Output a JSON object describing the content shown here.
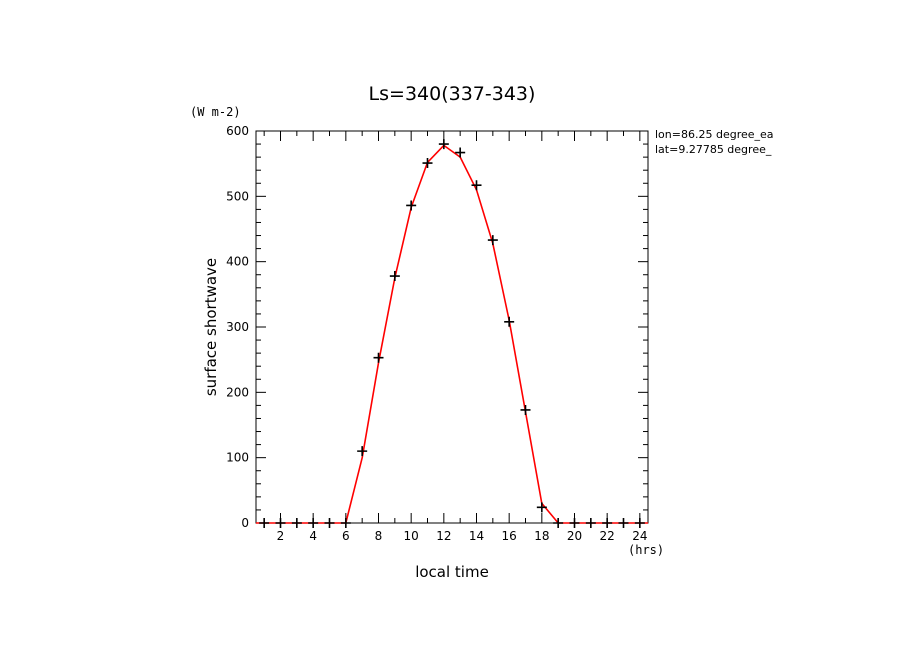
{
  "chart_data": {
    "type": "line",
    "title": "Ls=340(337-343)",
    "xlabel": "local time",
    "ylabel": "surface shortwave",
    "x_unit": "(hrs)",
    "y_unit": "(W m-2)",
    "xlim": [
      0.5,
      24.5
    ],
    "ylim": [
      0,
      600
    ],
    "x_ticks": [
      2,
      4,
      6,
      8,
      10,
      12,
      14,
      16,
      18,
      20,
      22,
      24
    ],
    "y_ticks": [
      0,
      100,
      200,
      300,
      400,
      500,
      600
    ],
    "grid": false,
    "annotations": [
      "lon=86.25 degree_ea",
      "lat=9.27785 degree_"
    ],
    "series": [
      {
        "style": "line",
        "color": "#ff0000",
        "x": [
          0.5,
          1,
          2,
          3,
          4,
          5,
          6,
          7,
          8,
          9,
          10,
          11,
          12,
          13,
          14,
          15,
          16,
          17,
          18,
          19,
          20,
          21,
          22,
          23,
          24,
          24.5
        ],
        "values": [
          0,
          0,
          0,
          0,
          0,
          0,
          0,
          100,
          245,
          375,
          483,
          552,
          578,
          560,
          510,
          428,
          310,
          170,
          30,
          0,
          0,
          0,
          0,
          0,
          0,
          0
        ]
      },
      {
        "style": "markers",
        "marker": "+",
        "color": "#000000",
        "x": [
          1,
          2,
          3,
          4,
          5,
          6,
          7,
          8,
          9,
          10,
          11,
          12,
          13,
          14,
          15,
          16,
          17,
          18,
          19,
          20,
          21,
          22,
          23,
          24
        ],
        "values": [
          0,
          0,
          0,
          0,
          0,
          0,
          110,
          253,
          378,
          486,
          551,
          580,
          567,
          517,
          433,
          308,
          173,
          24,
          0,
          0,
          0,
          0,
          0,
          0
        ]
      }
    ]
  }
}
